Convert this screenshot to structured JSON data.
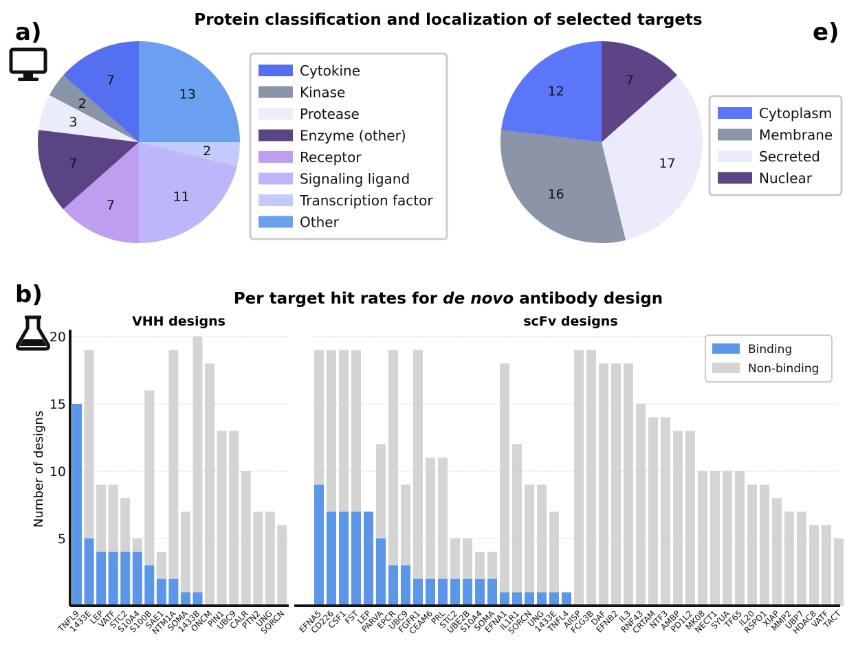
{
  "panel_labels": {
    "a": "a)",
    "b": "b)",
    "e": "e)"
  },
  "figure_title": "Protein classification and localization of selected targets",
  "icons": {
    "a": "monitor-icon",
    "b": "flask-icon"
  },
  "colors": {
    "binding": "#5b96e8",
    "non_binding": "#d4d4d4",
    "pie_classification": [
      "#5470f0",
      "#8a94a8",
      "#ebedfb",
      "#5a4484",
      "#bd9ef0",
      "#bbb7f8",
      "#c3cbfc",
      "#6b9ff0"
    ],
    "pie_localization": [
      "#5b76f9",
      "#8c94a8",
      "#ebebfb",
      "#5c4486"
    ]
  },
  "chart_data": [
    {
      "type": "pie",
      "id": "classification",
      "labels": [
        "Cytokine",
        "Kinase",
        "Protease",
        "Enzyme (other)",
        "Receptor",
        "Signaling ligand",
        "Transcription factor",
        "Other"
      ],
      "values": [
        7,
        2,
        3,
        7,
        7,
        11,
        2,
        13
      ],
      "legend_position": "right"
    },
    {
      "type": "pie",
      "id": "localization",
      "labels": [
        "Cytoplasm",
        "Membrane",
        "Secreted",
        "Nuclear"
      ],
      "values": [
        12,
        16,
        17,
        7
      ],
      "legend_position": "right"
    },
    {
      "type": "bar",
      "id": "vhh",
      "title": "Per target hit rates for de novo antibody design",
      "title_prefix": "Per target hit rates for ",
      "title_italic": "de novo",
      "title_suffix": " antibody design",
      "subtitle": "VHH designs",
      "ylabel": "Number of designs",
      "ylim": [
        0,
        20
      ],
      "yticks": [
        5,
        10,
        15,
        20
      ],
      "grid": true,
      "stacked": true,
      "categories": [
        "TNFL9",
        "1433E",
        "LEP",
        "VATF",
        "STC2",
        "S10A4",
        "S100B",
        "SAE1",
        "NTM1A",
        "SOMA",
        "1433B",
        "ONCM",
        "PIN1",
        "UBC9",
        "CALR",
        "PTN2",
        "UNG",
        "SORCN"
      ],
      "series": [
        {
          "name": "Binding",
          "values": [
            15,
            5,
            4,
            4,
            4,
            4,
            3,
            2,
            2,
            1,
            1,
            0,
            0,
            0,
            0,
            0,
            0,
            0
          ]
        },
        {
          "name": "Non-binding",
          "values": [
            0,
            14,
            5,
            5,
            4,
            1,
            13,
            2,
            17,
            6,
            19,
            18,
            13,
            13,
            10,
            7,
            7,
            6
          ]
        }
      ]
    },
    {
      "type": "bar",
      "id": "scfv",
      "subtitle": "scFv designs",
      "ylim": [
        0,
        20
      ],
      "yticks": [
        5,
        10,
        15,
        20
      ],
      "grid": true,
      "stacked": true,
      "legend_position": "top-right",
      "categories": [
        "EFNA5",
        "CD226",
        "CSF1",
        "FST",
        "LEP",
        "PARVA",
        "EPCR",
        "UBC9",
        "FGFR1",
        "CEAM6",
        "PRL",
        "STC2",
        "UBE2B",
        "S10A4",
        "SOMA",
        "EFNA1",
        "IL1R1",
        "SORCN",
        "UNG",
        "1433E",
        "TNFL4",
        "AIISP",
        "FCG3B",
        "DAF",
        "EFNB2",
        "IL3",
        "RNF43",
        "CRTAM",
        "NTF3",
        "AMBP",
        "PD1L2",
        "MK08",
        "NECT1",
        "SYUA",
        "TF65",
        "IL20",
        "RSPO1",
        "XIAP",
        "MMP2",
        "UBP7",
        "HDAC8",
        "VATF",
        "TACT"
      ],
      "series": [
        {
          "name": "Binding",
          "values": [
            9,
            7,
            7,
            7,
            7,
            5,
            3,
            3,
            2,
            2,
            2,
            2,
            2,
            2,
            2,
            1,
            1,
            1,
            1,
            1,
            1,
            0,
            0,
            0,
            0,
            0,
            0,
            0,
            0,
            0,
            0,
            0,
            0,
            0,
            0,
            0,
            0,
            0,
            0,
            0,
            0,
            0,
            0
          ]
        },
        {
          "name": "Non-binding",
          "values": [
            10,
            12,
            12,
            12,
            0,
            7,
            16,
            6,
            17,
            9,
            9,
            3,
            3,
            2,
            2,
            17,
            11,
            8,
            8,
            6,
            0,
            19,
            19,
            18,
            18,
            18,
            15,
            14,
            14,
            13,
            13,
            10,
            10,
            10,
            10,
            9,
            9,
            8,
            7,
            7,
            6,
            6,
            5
          ]
        }
      ]
    }
  ]
}
